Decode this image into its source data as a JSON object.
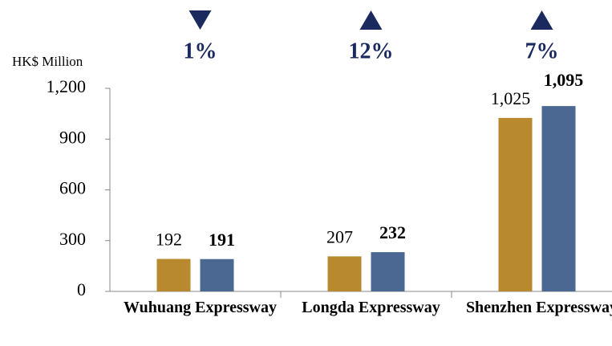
{
  "chart_data": {
    "type": "bar",
    "y_axis_label": "HK$ Million",
    "categories": [
      "Wuhuang Expressway",
      "Longda Expressway",
      "Shenzhen Expressway"
    ],
    "series": [
      {
        "color": "#b8892e",
        "values": [
          192,
          207,
          1025
        ],
        "value_labels": [
          "192",
          "207",
          "1,025"
        ]
      },
      {
        "color": "#4a6891",
        "values": [
          191,
          232,
          1095
        ],
        "value_labels": [
          "191",
          "232",
          "1,095"
        ]
      }
    ],
    "changes": [
      {
        "label": "1%",
        "direction": "down"
      },
      {
        "label": "12%",
        "direction": "up"
      },
      {
        "label": "7%",
        "direction": "up"
      }
    ],
    "change_color": "#1b2a5e",
    "ylim": [
      0,
      1200
    ],
    "yticks": [
      0,
      300,
      600,
      900,
      {
        "value": 1200,
        "label": "1,200"
      }
    ],
    "grid": false
  }
}
